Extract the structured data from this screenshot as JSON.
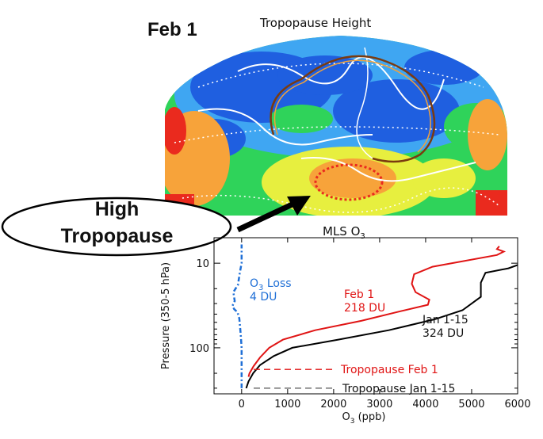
{
  "map": {
    "date": "Feb 1",
    "title": "Tropopause Height"
  },
  "callout": {
    "line1": "High",
    "line2": "Tropopause"
  },
  "chart_data": {
    "type": "line",
    "title": "MLS O",
    "title_sub": "3",
    "xlabel": "O",
    "xlabel_sub": "3",
    "xlabel_unit": " (ppb)",
    "ylabel": "Pressure (350-5 hPa)",
    "xlim": [
      -600,
      6000
    ],
    "ylim": [
      350,
      5
    ],
    "y_scale": "log",
    "x_ticks": [
      0,
      1000,
      2000,
      3000,
      4000,
      5000,
      6000
    ],
    "y_ticks": [
      10,
      100
    ],
    "grid": false,
    "series": [
      {
        "name": "Feb 1",
        "color": "#e01414",
        "points": [
          [
            150,
            220
          ],
          [
            170,
            200
          ],
          [
            260,
            165
          ],
          [
            400,
            130
          ],
          [
            600,
            100
          ],
          [
            900,
            80
          ],
          [
            1600,
            62
          ],
          [
            2600,
            48
          ],
          [
            3450,
            37
          ],
          [
            4050,
            31
          ],
          [
            4080,
            27
          ],
          [
            3780,
            22
          ],
          [
            3700,
            17.5
          ],
          [
            3750,
            13.5
          ],
          [
            4150,
            11
          ],
          [
            5550,
            8
          ],
          [
            5700,
            7.3
          ],
          [
            5550,
            6.8
          ],
          [
            5600,
            6.3
          ]
        ]
      },
      {
        "name": "Jan 1-15",
        "color": "#000000",
        "points": [
          [
            100,
            300
          ],
          [
            150,
            250
          ],
          [
            250,
            200
          ],
          [
            400,
            160
          ],
          [
            700,
            125
          ],
          [
            1100,
            100
          ],
          [
            2100,
            80
          ],
          [
            3200,
            62
          ],
          [
            4200,
            46
          ],
          [
            4800,
            36
          ],
          [
            5200,
            25
          ],
          [
            5200,
            17
          ],
          [
            5300,
            13
          ],
          [
            5800,
            11.5
          ],
          [
            6000,
            10.5
          ]
        ]
      },
      {
        "name": "O3 Loss",
        "color": "#1f6fd6",
        "points": [
          [
            0,
            300
          ],
          [
            0,
            100
          ],
          [
            -20,
            70
          ],
          [
            -50,
            45
          ],
          [
            -90,
            38
          ],
          [
            -160,
            35
          ],
          [
            -200,
            32
          ],
          [
            -150,
            28
          ],
          [
            -180,
            22
          ],
          [
            -80,
            18
          ],
          [
            -40,
            13
          ],
          [
            0,
            10
          ],
          [
            0,
            6
          ]
        ]
      }
    ],
    "annotations": [
      {
        "key": "feb_label",
        "lines": [
          "Feb 1",
          "218 DU"
        ],
        "color": "#e01414"
      },
      {
        "key": "jan_label",
        "lines": [
          "Jan 1-15",
          "324 DU"
        ],
        "color": "#111111"
      },
      {
        "key": "loss_label",
        "lines": [
          "O",
          "3",
          " Loss",
          "4 DU"
        ],
        "color": "#1f6fd6"
      }
    ],
    "reference_lines": [
      {
        "name": "Tropopause Feb 1",
        "pressure": 180,
        "color": "#e01414",
        "dash": true
      },
      {
        "name": "Tropopause Jan 1-15",
        "pressure": 300,
        "color": "#555555",
        "dash": true
      }
    ]
  },
  "colors": {
    "map_blue": "#1f5fe0",
    "map_lightblue": "#3fa6f2",
    "map_green": "#2fd35a",
    "map_yellow": "#e7ef3f",
    "map_orange": "#f7a33a",
    "map_red": "#ea2a1e"
  }
}
